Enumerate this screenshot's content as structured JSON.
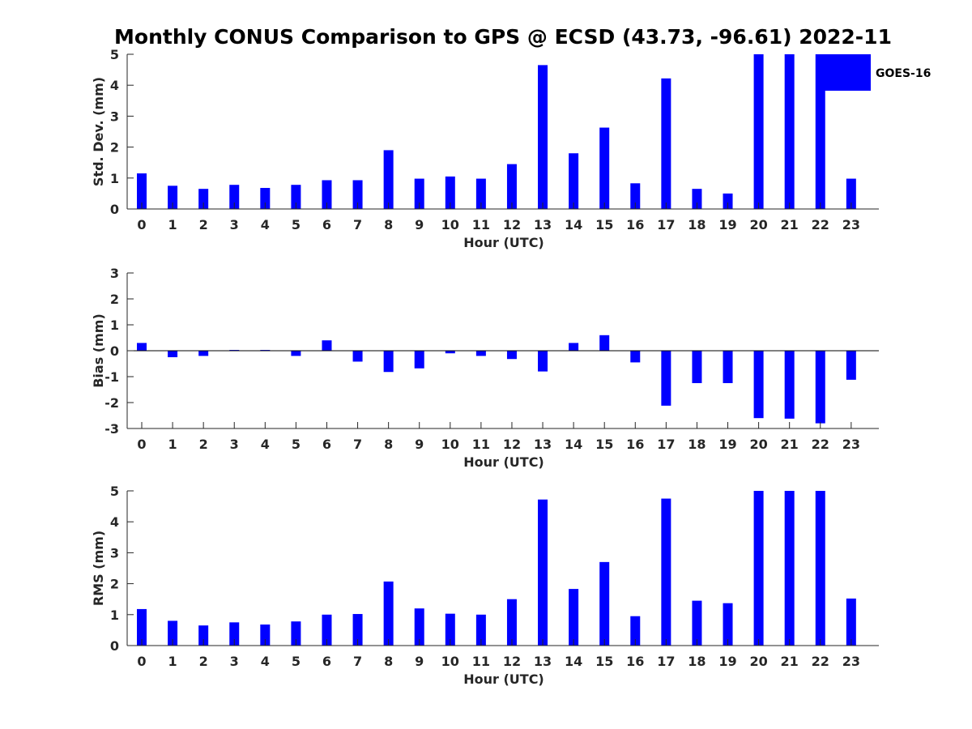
{
  "chart_data": [
    {
      "type": "bar",
      "title": "Monthly CONUS Comparison to GPS @ ECSD (43.73, -96.61) 2022-11",
      "xlabel": "Hour (UTC)",
      "ylabel": "Std. Dev. (mm)",
      "ylim": [
        0,
        5
      ],
      "yticks": [
        "0",
        "1",
        "2",
        "3",
        "4",
        "5"
      ],
      "categories": [
        "0",
        "1",
        "2",
        "3",
        "4",
        "5",
        "6",
        "7",
        "8",
        "9",
        "10",
        "11",
        "12",
        "13",
        "14",
        "15",
        "16",
        "17",
        "18",
        "19",
        "20",
        "21",
        "22",
        "23"
      ],
      "series": [
        {
          "name": "GOES-16",
          "color": "#0000ff",
          "values": [
            1.15,
            0.75,
            0.65,
            0.78,
            0.68,
            0.78,
            0.93,
            0.93,
            1.9,
            0.98,
            1.05,
            0.98,
            1.45,
            4.65,
            1.8,
            2.63,
            0.83,
            4.22,
            0.65,
            0.5,
            5.0,
            5.0,
            5.0,
            0.98
          ]
        }
      ],
      "legend": {
        "label": "GOES-16",
        "placement": "top-right"
      }
    },
    {
      "type": "bar",
      "xlabel": "Hour (UTC)",
      "ylabel": "Bias (mm)",
      "ylim": [
        -3,
        3
      ],
      "yticks": [
        "-3",
        "-2",
        "-1",
        "0",
        "1",
        "2",
        "3"
      ],
      "categories": [
        "0",
        "1",
        "2",
        "3",
        "4",
        "5",
        "6",
        "7",
        "8",
        "9",
        "10",
        "11",
        "12",
        "13",
        "14",
        "15",
        "16",
        "17",
        "18",
        "19",
        "20",
        "21",
        "22",
        "23"
      ],
      "series": [
        {
          "name": "GOES-16",
          "color": "#0000ff",
          "values": [
            0.3,
            -0.25,
            -0.2,
            0.03,
            0.03,
            -0.2,
            0.4,
            -0.42,
            -0.82,
            -0.68,
            -0.1,
            -0.2,
            -0.32,
            -0.8,
            0.3,
            0.6,
            -0.45,
            -2.12,
            -1.25,
            -1.25,
            -2.6,
            -2.62,
            -2.8,
            -1.12
          ]
        }
      ]
    },
    {
      "type": "bar",
      "xlabel": "Hour (UTC)",
      "ylabel": "RMS (mm)",
      "ylim": [
        0,
        5
      ],
      "yticks": [
        "0",
        "1",
        "2",
        "3",
        "4",
        "5"
      ],
      "categories": [
        "0",
        "1",
        "2",
        "3",
        "4",
        "5",
        "6",
        "7",
        "8",
        "9",
        "10",
        "11",
        "12",
        "13",
        "14",
        "15",
        "16",
        "17",
        "18",
        "19",
        "20",
        "21",
        "22",
        "23"
      ],
      "series": [
        {
          "name": "GOES-16",
          "color": "#0000ff",
          "values": [
            1.18,
            0.8,
            0.65,
            0.75,
            0.68,
            0.78,
            1.0,
            1.02,
            2.07,
            1.2,
            1.03,
            1.0,
            1.5,
            4.72,
            1.83,
            2.7,
            0.95,
            4.75,
            1.45,
            1.37,
            5.0,
            5.0,
            5.0,
            1.52
          ]
        }
      ]
    }
  ]
}
